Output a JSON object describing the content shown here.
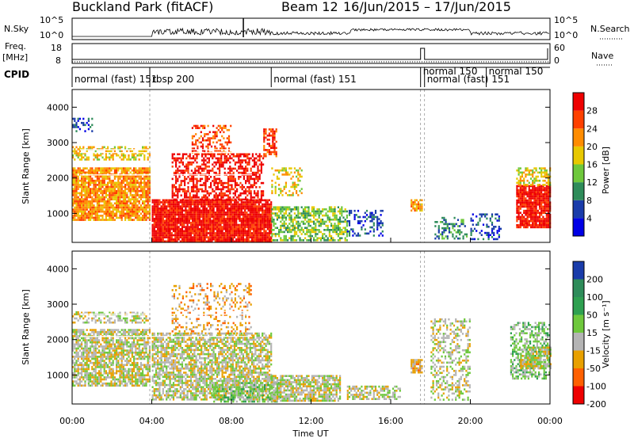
{
  "header": {
    "station": "Buckland Park (fitACF)",
    "beam": "Beam 12",
    "date_range": "16/Jun/2015 – 17/Jun/2015"
  },
  "panels": {
    "nsky": {
      "label": "N.Sky",
      "right_label": "N.Search",
      "ticks_left": [
        "10^5",
        "10^0"
      ],
      "ticks_right": [
        "10^5",
        "10^0"
      ]
    },
    "freq": {
      "label_top": "Freq.",
      "label_bottom": "[MHz]",
      "right_label": "Nave",
      "ticks_left": [
        "18",
        "8"
      ],
      "ticks_right": [
        "60",
        "0"
      ]
    },
    "cpid": {
      "label": "CPID",
      "segments": [
        {
          "text": "normal (fast)",
          "extra": "151",
          "start": 0.0,
          "end": 3.9
        },
        {
          "text": "rbsp",
          "extra": "200",
          "start": 3.9,
          "end": 10.0
        },
        {
          "text": "normal (fast)",
          "extra": "151",
          "start": 10.0,
          "end": 17.5
        },
        {
          "text": "normal",
          "extra": "150",
          "start": 17.5,
          "end": 20.8
        },
        {
          "text": "normal (fast)",
          "extra": "151",
          "start": 17.7,
          "end": 20.8
        },
        {
          "text": "normal",
          "extra": "150",
          "start": 20.8,
          "end": 24.0
        }
      ]
    }
  },
  "axes": {
    "ylabel": "Slant Range [km]",
    "xlabel": "Time UT",
    "x_ticks": [
      "00:00",
      "04:00",
      "08:00",
      "12:00",
      "16:00",
      "20:00",
      "00:00"
    ],
    "y_ticks": [
      "1000",
      "2000",
      "3000",
      "4000"
    ]
  },
  "colorbars": {
    "power": {
      "label": "Power [dB]",
      "ticks": [
        "28",
        "24",
        "20",
        "16",
        "12",
        "8",
        "4"
      ]
    },
    "velocity": {
      "label": "Velocity [m s⁻¹]",
      "ticks": [
        "200",
        "100",
        "50",
        "15",
        "-15",
        "-50",
        "-100",
        "-200"
      ]
    }
  },
  "colors": {
    "power": [
      "#0000e6",
      "#1a3caa",
      "#2e8c5a",
      "#6ec83c",
      "#e8c800",
      "#ff8c00",
      "#ff4000",
      "#ee0000"
    ],
    "velocity": [
      "#1a3caa",
      "#2e8c5a",
      "#2ea050",
      "#6ec83c",
      "#b4b4b4",
      "#e8a000",
      "#ff6000",
      "#ee0000"
    ]
  },
  "chart_data": [
    {
      "type": "heatmap",
      "name": "power",
      "x_range_hours": [
        0,
        24
      ],
      "y_range_km": [
        180,
        4500
      ],
      "regions": [
        {
          "t0": 0.0,
          "t1": 3.9,
          "r0": 800,
          "r1": 2300,
          "level": 5,
          "density": 0.85
        },
        {
          "t0": 0.0,
          "t1": 3.9,
          "r0": 2500,
          "r1": 2900,
          "level": 4,
          "density": 0.55
        },
        {
          "t0": 0.0,
          "t1": 1.0,
          "r0": 3300,
          "r1": 3700,
          "level": 1,
          "density": 0.4
        },
        {
          "t0": 4.0,
          "t1": 10.0,
          "r0": 200,
          "r1": 1400,
          "level": 7,
          "density": 0.95
        },
        {
          "t0": 5.0,
          "t1": 9.6,
          "r0": 1400,
          "r1": 2700,
          "level": 7,
          "density": 0.55
        },
        {
          "t0": 6.0,
          "t1": 8.0,
          "r0": 2700,
          "r1": 3500,
          "level": 6,
          "density": 0.45
        },
        {
          "t0": 9.6,
          "t1": 10.3,
          "r0": 2600,
          "r1": 3400,
          "level": 6,
          "density": 0.55
        },
        {
          "t0": 10.0,
          "t1": 13.8,
          "r0": 250,
          "r1": 1200,
          "level": 3,
          "density": 0.6
        },
        {
          "t0": 10.0,
          "t1": 11.5,
          "r0": 1500,
          "r1": 2300,
          "level": 4,
          "density": 0.35
        },
        {
          "t0": 13.8,
          "t1": 15.6,
          "r0": 400,
          "r1": 1100,
          "level": 1,
          "density": 0.35
        },
        {
          "t0": 17.0,
          "t1": 17.6,
          "r0": 1100,
          "r1": 1400,
          "level": 5,
          "density": 0.8
        },
        {
          "t0": 18.2,
          "t1": 19.8,
          "r0": 300,
          "r1": 900,
          "level": 2,
          "density": 0.45
        },
        {
          "t0": 20.0,
          "t1": 21.5,
          "r0": 300,
          "r1": 1000,
          "level": 1,
          "density": 0.3
        },
        {
          "t0": 22.3,
          "t1": 24.0,
          "r0": 600,
          "r1": 1800,
          "level": 7,
          "density": 0.9
        },
        {
          "t0": 22.3,
          "t1": 24.0,
          "r0": 1800,
          "r1": 2300,
          "level": 4,
          "density": 0.6
        }
      ]
    },
    {
      "type": "heatmap",
      "name": "velocity",
      "x_range_hours": [
        0,
        24
      ],
      "y_range_km": [
        180,
        4500
      ],
      "regions": [
        {
          "t0": 0.0,
          "t1": 3.9,
          "r0": 700,
          "r1": 2300,
          "level": 4,
          "density": 0.75
        },
        {
          "t0": 0.0,
          "t1": 3.9,
          "r0": 2500,
          "r1": 2800,
          "level": 4,
          "density": 0.45
        },
        {
          "t0": 4.0,
          "t1": 10.0,
          "r0": 300,
          "r1": 2200,
          "level": 4,
          "density": 0.7
        },
        {
          "t0": 5.0,
          "t1": 9.0,
          "r0": 2200,
          "r1": 3600,
          "level": 5,
          "density": 0.25
        },
        {
          "t0": 7.0,
          "t1": 10.5,
          "r0": 250,
          "r1": 800,
          "level": 3,
          "density": 0.5
        },
        {
          "t0": 10.0,
          "t1": 13.5,
          "r0": 250,
          "r1": 1000,
          "level": 4,
          "density": 0.8
        },
        {
          "t0": 13.8,
          "t1": 16.5,
          "r0": 300,
          "r1": 700,
          "level": 4,
          "density": 0.6
        },
        {
          "t0": 17.0,
          "t1": 17.6,
          "r0": 1100,
          "r1": 1450,
          "level": 5,
          "density": 0.85
        },
        {
          "t0": 18.0,
          "t1": 20.0,
          "r0": 300,
          "r1": 2600,
          "level": 4,
          "density": 0.4
        },
        {
          "t0": 22.0,
          "t1": 24.0,
          "r0": 900,
          "r1": 2500,
          "level": 3,
          "density": 0.55
        },
        {
          "t0": 22.5,
          "t1": 24.0,
          "r0": 1200,
          "r1": 1800,
          "level": 4,
          "density": 0.7
        }
      ]
    }
  ]
}
